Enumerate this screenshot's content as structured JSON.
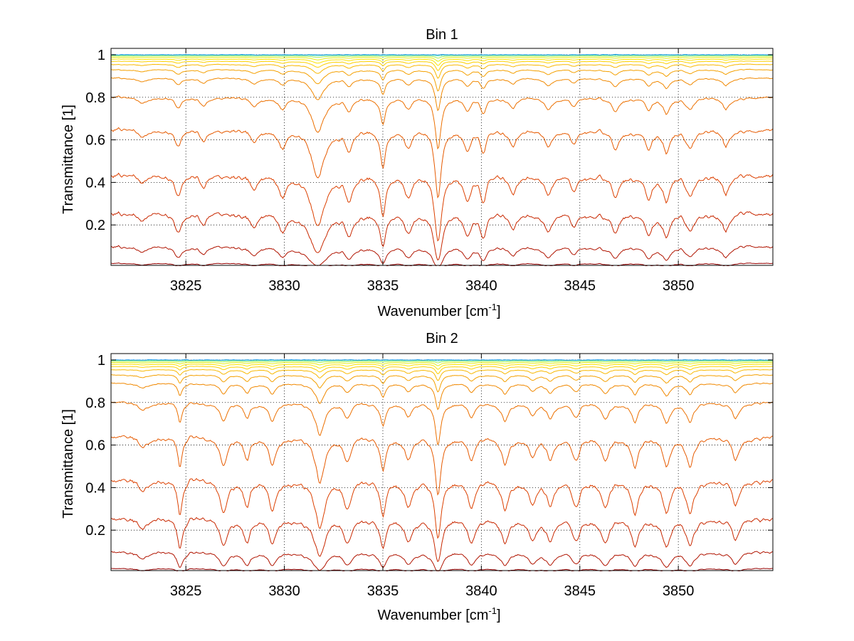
{
  "chart_data": [
    {
      "type": "line",
      "title": "Bin 1",
      "xlabel": "Wavenumber [cm",
      "xlabel_sup": "-1",
      "xlabel_end": "]",
      "ylabel": "Transmittance [1]",
      "xlim": [
        3821.2,
        3854.8
      ],
      "ylim": [
        0.01,
        1.03
      ],
      "xticks": [
        3825,
        3830,
        3835,
        3840,
        3845,
        3850
      ],
      "yticks": [
        0.2,
        0.4,
        0.6,
        0.8,
        1
      ],
      "ytick_labels": [
        "0.2",
        "0.4",
        "0.6",
        "0.8",
        "1"
      ],
      "grid": true,
      "baselines": [
        0.0,
        0.02,
        0.1,
        0.26,
        0.44,
        0.65,
        0.8,
        0.89,
        0.93,
        0.955,
        0.97,
        0.98,
        0.988,
        0.994,
        0.998,
        1.0
      ],
      "series_colors": [
        "#800000",
        "#960000",
        "#b01400",
        "#c82800",
        "#dc4000",
        "#e65a00",
        "#ec7000",
        "#f08800",
        "#f4a000",
        "#f8b800",
        "#fcd000",
        "#fce400",
        "#e4ee14",
        "#a8f050",
        "#50e0b4",
        "#1e96e6"
      ],
      "absorption_lines": [
        [
          3822.8,
          0.15,
          0.25
        ],
        [
          3824.6,
          0.3,
          0.2
        ],
        [
          3825.9,
          0.2,
          0.2
        ],
        [
          3828.5,
          0.25,
          0.2
        ],
        [
          3829.9,
          0.3,
          0.2
        ],
        [
          3831.7,
          1.0,
          0.35
        ],
        [
          3833.3,
          0.35,
          0.2
        ],
        [
          3835.0,
          0.7,
          0.15
        ],
        [
          3836.3,
          0.3,
          0.2
        ],
        [
          3837.8,
          1.6,
          0.15
        ],
        [
          3839.3,
          0.35,
          0.2
        ],
        [
          3840.1,
          0.45,
          0.15
        ],
        [
          3841.6,
          0.25,
          0.2
        ],
        [
          3843.4,
          0.3,
          0.25
        ],
        [
          3844.7,
          0.2,
          0.2
        ],
        [
          3846.8,
          0.3,
          0.25
        ],
        [
          3848.5,
          0.35,
          0.2
        ],
        [
          3849.4,
          0.4,
          0.2
        ],
        [
          3850.6,
          0.3,
          0.2
        ],
        [
          3852.4,
          0.3,
          0.2
        ]
      ]
    },
    {
      "type": "line",
      "title": "Bin 2",
      "xlabel": "Wavenumber [cm",
      "xlabel_sup": "-1",
      "xlabel_end": "]",
      "ylabel": "Transmittance [1]",
      "xlim": [
        3821.2,
        3854.8
      ],
      "ylim": [
        0.01,
        1.03
      ],
      "xticks": [
        3825,
        3830,
        3835,
        3840,
        3845,
        3850
      ],
      "yticks": [
        0.2,
        0.4,
        0.6,
        0.8,
        1
      ],
      "ytick_labels": [
        "0.2",
        "0.4",
        "0.6",
        "0.8",
        "1"
      ],
      "grid": true,
      "baselines": [
        0.0,
        0.02,
        0.1,
        0.26,
        0.44,
        0.64,
        0.8,
        0.89,
        0.93,
        0.955,
        0.97,
        0.98,
        0.988,
        0.994,
        0.998,
        1.0
      ],
      "series_colors": [
        "#800000",
        "#960000",
        "#b01400",
        "#c82800",
        "#dc4000",
        "#e65a00",
        "#ec7000",
        "#f08800",
        "#f4a000",
        "#f8b800",
        "#fcd000",
        "#fce400",
        "#e4ee14",
        "#a8f050",
        "#50e0b4",
        "#1e96e6"
      ],
      "absorption_lines": [
        [
          3822.8,
          0.2,
          0.25
        ],
        [
          3824.7,
          0.6,
          0.12
        ],
        [
          3826.9,
          0.5,
          0.2
        ],
        [
          3828.1,
          0.4,
          0.2
        ],
        [
          3829.4,
          0.45,
          0.2
        ],
        [
          3831.8,
          0.9,
          0.25
        ],
        [
          3833.2,
          0.4,
          0.2
        ],
        [
          3835.0,
          0.6,
          0.15
        ],
        [
          3836.3,
          0.4,
          0.2
        ],
        [
          3837.8,
          1.2,
          0.15
        ],
        [
          3839.5,
          0.4,
          0.2
        ],
        [
          3841.2,
          0.45,
          0.2
        ],
        [
          3842.6,
          0.35,
          0.2
        ],
        [
          3843.5,
          0.4,
          0.2
        ],
        [
          3844.8,
          0.4,
          0.2
        ],
        [
          3846.3,
          0.45,
          0.2
        ],
        [
          3847.8,
          0.5,
          0.2
        ],
        [
          3849.4,
          0.55,
          0.2
        ],
        [
          3850.6,
          0.5,
          0.2
        ],
        [
          3852.9,
          0.4,
          0.2
        ]
      ]
    }
  ]
}
